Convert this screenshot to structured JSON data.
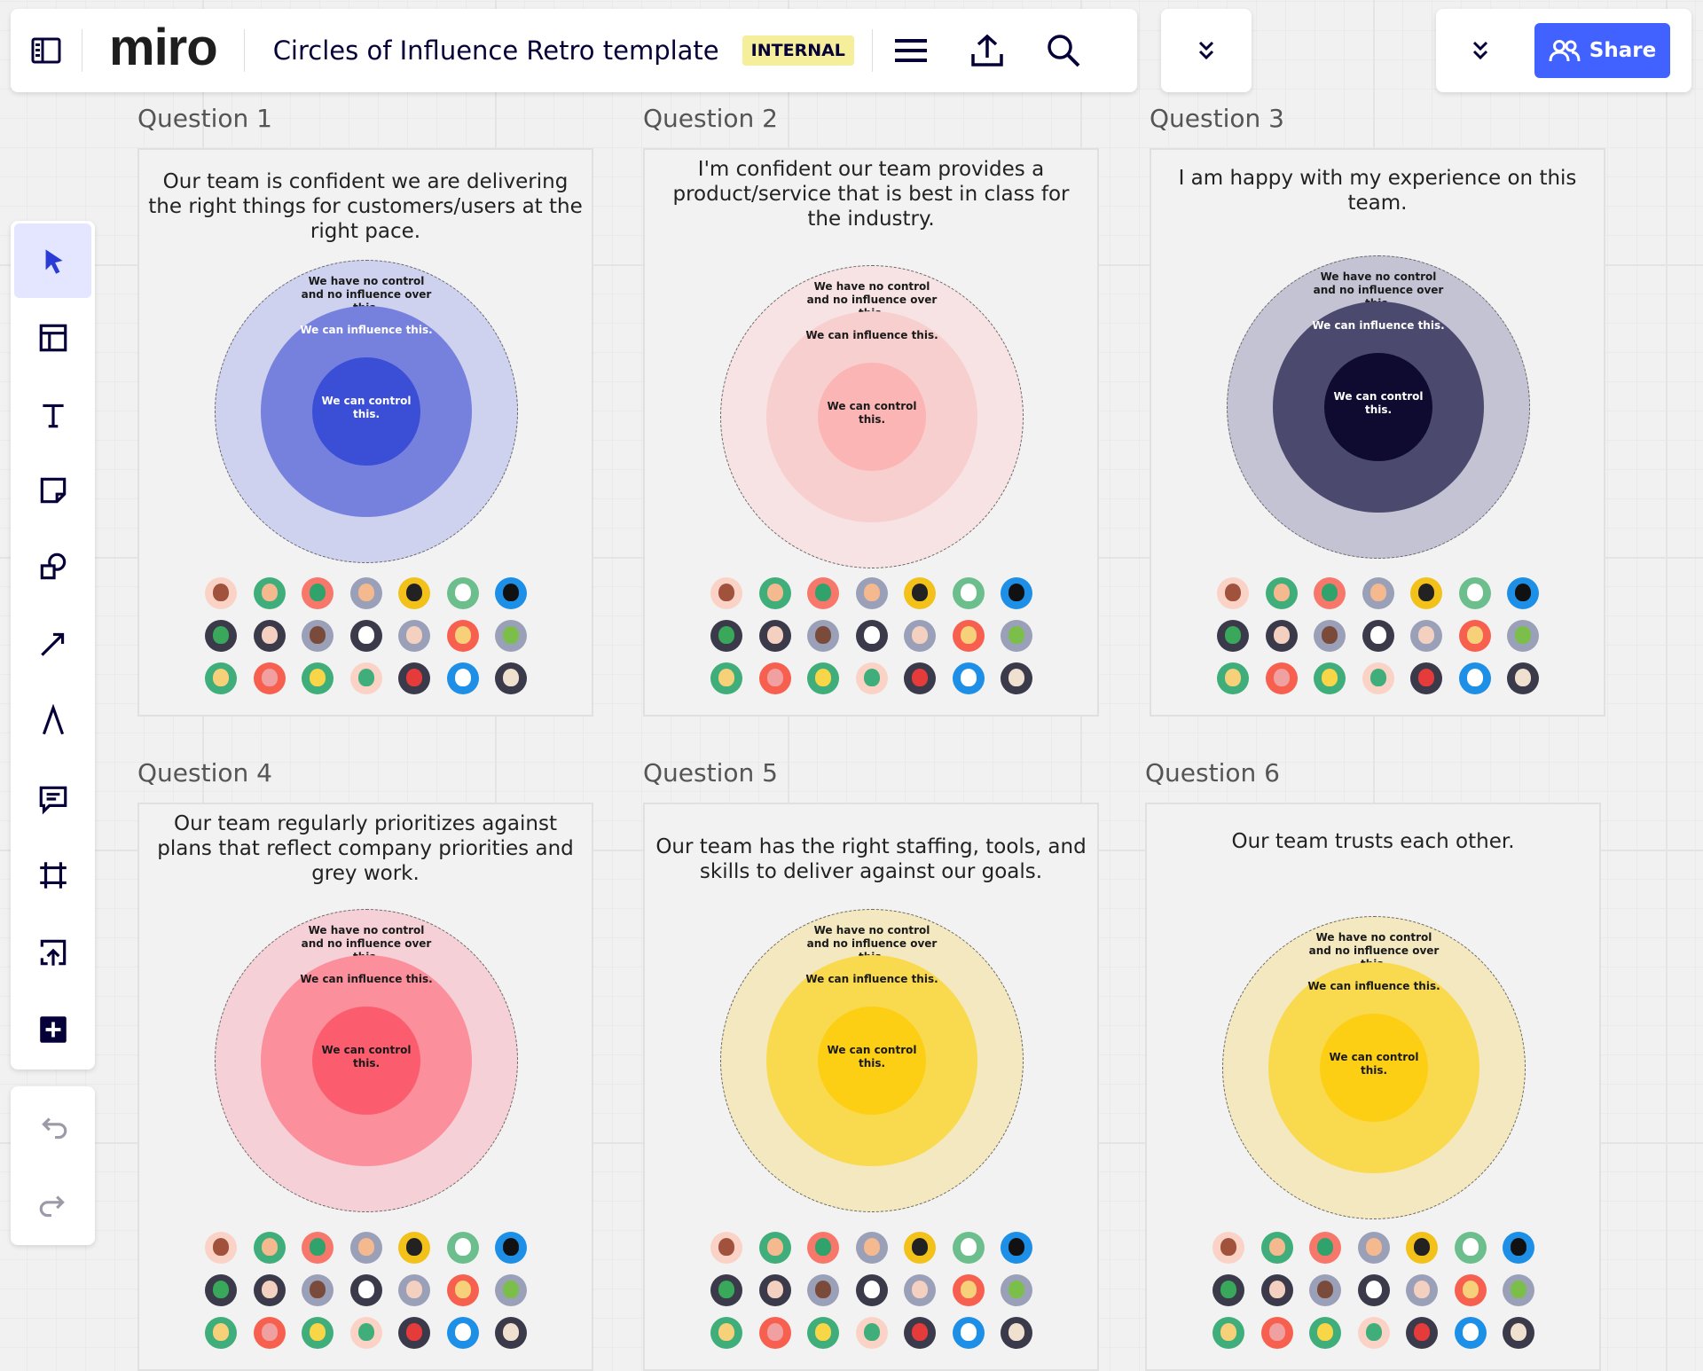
{
  "header": {
    "logo": "miro",
    "title": "Circles of Influence Retro template",
    "badge": "INTERNAL",
    "share_label": "Share"
  },
  "icons": {
    "sidebar_toggle": "sidebar-icon",
    "menu": "hamburger-icon",
    "export": "upload-icon",
    "search": "search-icon",
    "collapse": "chevron-double-down-icon",
    "share": "users-icon"
  },
  "toolbar": {
    "tools": [
      "select",
      "templates",
      "text",
      "sticky-note",
      "shapes",
      "line",
      "pen",
      "comment",
      "frame",
      "upload",
      "more"
    ],
    "active": "select",
    "history": [
      "undo",
      "redo"
    ]
  },
  "circle_labels": {
    "outer": "We have no control and no influence over this.",
    "middle": "We can influence this.",
    "inner": "We can control this."
  },
  "frames": [
    {
      "label": "Question 1",
      "question": "Our team is confident we are delivering the right things for customers/users at the right pace.",
      "colors": [
        "#cfd2ee",
        "#7681de",
        "#3a4fd6"
      ],
      "text_colors": [
        "#1a1a1a",
        "#ffffff",
        "#ffffff"
      ]
    },
    {
      "label": "Question 2",
      "question": "I'm confident our team provides a product/service that is best in class for the industry.",
      "colors": [
        "#f7e3e3",
        "#f8cfcf",
        "#fbb5b5"
      ],
      "text_colors": [
        "#1a1a1a",
        "#1a1a1a",
        "#1a1a1a"
      ]
    },
    {
      "label": "Question 3",
      "question": "I am happy with my experience on this team.",
      "colors": [
        "#c4c3d3",
        "#4b4a6e",
        "#0f0b30"
      ],
      "text_colors": [
        "#1a1a1a",
        "#ffffff",
        "#ffffff"
      ]
    },
    {
      "label": "Question 4",
      "question": "Our team regularly prioritizes against plans that reflect company priorities and grey work.",
      "colors": [
        "#f5d0d7",
        "#fb8f9c",
        "#fb5d6e"
      ],
      "text_colors": [
        "#1a1a1a",
        "#1a1a1a",
        "#1a1a1a"
      ]
    },
    {
      "label": "Question 5",
      "question": "Our team has the right staffing, tools, and skills to deliver against our goals.",
      "colors": [
        "#f3e8c0",
        "#f9da4f",
        "#fdcf14"
      ],
      "text_colors": [
        "#1a1a1a",
        "#1a1a1a",
        "#1a1a1a"
      ]
    },
    {
      "label": "Question 6",
      "question": "Our team trusts  each other.",
      "colors": [
        "#f3e8c0",
        "#f9da4f",
        "#fdcf14"
      ],
      "text_colors": [
        "#1a1a1a",
        "#1a1a1a",
        "#1a1a1a"
      ]
    }
  ],
  "avatar_colors": [
    "#fbd3c6",
    "#3fae7a",
    "#f7776b",
    "#9aa0b8",
    "#f2c21b",
    "#6cbf8c",
    "#1e8fe6",
    "#3a3a4a",
    "#3a3a4a",
    "#9aa0b8",
    "#3a3a4a",
    "#9aa0b8",
    "#f7604f",
    "#9aa0b8",
    "#3fae7a",
    "#f7604f",
    "#3fae7a",
    "#fbd3c6",
    "#3a3a4a",
    "#1e8fe6",
    "#3a3a4a"
  ],
  "avatar_face_colors": [
    "#a0523d",
    "#f4b98e",
    "#2fa36b",
    "#f4b98e",
    "#222",
    "#fff",
    "#111",
    "#39a85a",
    "#f4d0c0",
    "#7a4a3a",
    "#fff",
    "#f4d0c0",
    "#f7d07a",
    "#7bbf4a",
    "#f7d07a",
    "#f0a0a0",
    "#f9d648",
    "#3fae7a",
    "#e53b3b",
    "#fff",
    "#f0e0d0"
  ]
}
